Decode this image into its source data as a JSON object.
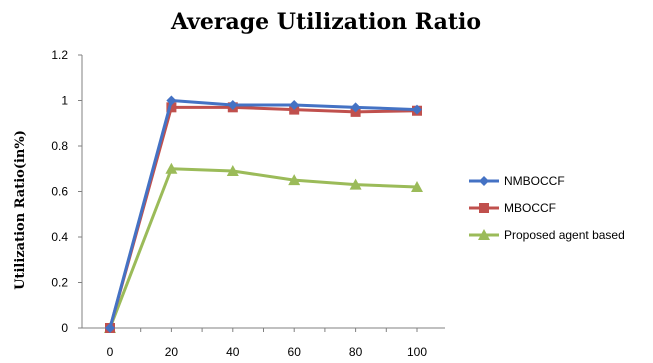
{
  "chart_data": {
    "type": "line",
    "title": "Average Utilization Ratio",
    "xlabel": "",
    "ylabel": "Utilization Ratio(in%)",
    "x": [
      0,
      20,
      40,
      60,
      80,
      100
    ],
    "x_tick_labels": [
      "0",
      "20",
      "40",
      "60",
      "80",
      "100"
    ],
    "y_tick_labels": [
      "0",
      "0.2",
      "0.4",
      "0.6",
      "0.8",
      "1",
      "1.2"
    ],
    "ylim": [
      0,
      1.2
    ],
    "grid": false,
    "legend_position": "right",
    "series": [
      {
        "name": "NMBOCCF",
        "color": "#4472C4",
        "marker": "diamond",
        "values": [
          0,
          1.0,
          0.98,
          0.98,
          0.97,
          0.96
        ]
      },
      {
        "name": "MBOCCF",
        "color": "#C0504D",
        "marker": "square",
        "values": [
          0,
          0.97,
          0.97,
          0.96,
          0.95,
          0.955
        ]
      },
      {
        "name": "Proposed agent based",
        "color": "#9BBB59",
        "marker": "triangle",
        "values": [
          0,
          0.7,
          0.69,
          0.65,
          0.63,
          0.62
        ]
      }
    ]
  }
}
